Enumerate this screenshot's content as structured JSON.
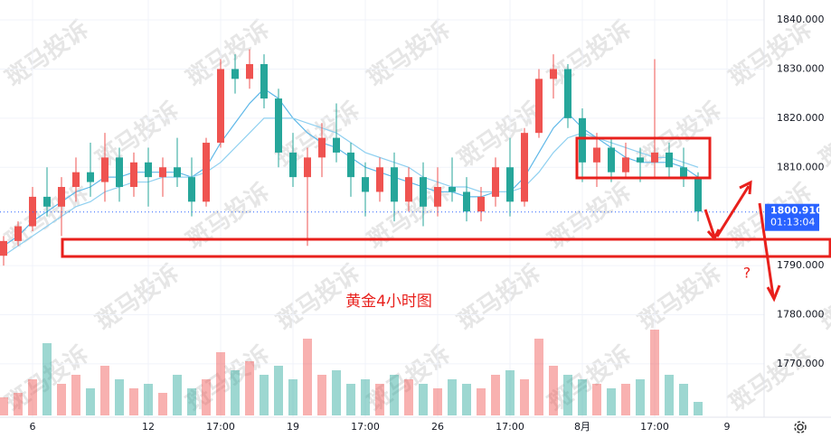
{
  "chart_data": {
    "type": "candlestick",
    "annotation": "黄金4小时图",
    "question_mark": "?",
    "watermark": "斑马投诉",
    "categories": [
      null,
      null,
      "6",
      null,
      null,
      null,
      null,
      null,
      null,
      null,
      "12",
      null,
      null,
      null,
      null,
      "17:00",
      null,
      null,
      null,
      null,
      "19",
      null,
      null,
      null,
      null,
      "17:00",
      null,
      null,
      null,
      null,
      "26",
      null,
      null,
      null,
      null,
      "17:00",
      null,
      null,
      null,
      null,
      "8月",
      null,
      null,
      null,
      null,
      "17:00",
      null,
      null,
      null,
      null,
      "9"
    ],
    "ohlc": [
      [
        1792,
        1796,
        1790,
        1795
      ],
      [
        1795,
        1799,
        1794,
        1798
      ],
      [
        1798,
        1806,
        1797,
        1804
      ],
      [
        1804,
        1810,
        1800,
        1802
      ],
      [
        1802,
        1808,
        1796,
        1806
      ],
      [
        1806,
        1812,
        1803,
        1809
      ],
      [
        1809,
        1815,
        1804,
        1807
      ],
      [
        1807,
        1817,
        1803,
        1812
      ],
      [
        1812,
        1814,
        1803,
        1806
      ],
      [
        1806,
        1813,
        1804,
        1811
      ],
      [
        1811,
        1814,
        1802,
        1808
      ],
      [
        1808,
        1812,
        1804,
        1810
      ],
      [
        1810,
        1816,
        1806,
        1808
      ],
      [
        1808,
        1812,
        1800,
        1803
      ],
      [
        1803,
        1816,
        1802,
        1815
      ],
      [
        1815,
        1832,
        1814,
        1830
      ],
      [
        1830,
        1833,
        1825,
        1828
      ],
      [
        1828,
        1834,
        1826,
        1831
      ],
      [
        1831,
        1833,
        1822,
        1824
      ],
      [
        1824,
        1826,
        1810,
        1813
      ],
      [
        1813,
        1817,
        1806,
        1808
      ],
      [
        1808,
        1814,
        1794,
        1812
      ],
      [
        1812,
        1819,
        1808,
        1816
      ],
      [
        1816,
        1823,
        1811,
        1813
      ],
      [
        1813,
        1815,
        1804,
        1808
      ],
      [
        1808,
        1811,
        1800,
        1805
      ],
      [
        1805,
        1812,
        1803,
        1810
      ],
      [
        1810,
        1813,
        1799,
        1803
      ],
      [
        1803,
        1810,
        1801,
        1808
      ],
      [
        1808,
        1811,
        1798,
        1802
      ],
      [
        1802,
        1810,
        1800,
        1806
      ],
      [
        1806,
        1812,
        1803,
        1805
      ],
      [
        1805,
        1808,
        1799,
        1801
      ],
      [
        1801,
        1806,
        1799,
        1804
      ],
      [
        1804,
        1812,
        1802,
        1810
      ],
      [
        1810,
        1816,
        1800,
        1803
      ],
      [
        1803,
        1818,
        1802,
        1817
      ],
      [
        1817,
        1830,
        1816,
        1828
      ],
      [
        1828,
        1833,
        1824,
        1830
      ],
      [
        1830,
        1831,
        1818,
        1820
      ],
      [
        1820,
        1822,
        1807,
        1811
      ],
      [
        1811,
        1817,
        1806,
        1814
      ],
      [
        1814,
        1816,
        1807,
        1809
      ],
      [
        1809,
        1815,
        1808,
        1812
      ],
      [
        1812,
        1814,
        1807,
        1811
      ],
      [
        1811,
        1832,
        1808,
        1813
      ],
      [
        1813,
        1815,
        1808,
        1810
      ],
      [
        1810,
        1814,
        1806,
        1808
      ],
      [
        1808,
        1809,
        1799,
        1801
      ],
      null,
      null
    ],
    "volume": [
      20,
      25,
      40,
      80,
      35,
      45,
      30,
      55,
      40,
      30,
      35,
      25,
      45,
      30,
      40,
      70,
      50,
      60,
      45,
      55,
      40,
      85,
      45,
      50,
      35,
      40,
      35,
      45,
      40,
      35,
      30,
      40,
      35,
      30,
      45,
      50,
      40,
      85,
      55,
      45,
      40,
      35,
      30,
      35,
      40,
      95,
      45,
      35,
      15,
      null,
      null
    ],
    "series": [
      {
        "color": "#5fb8e8",
        "values": [
          1794,
          1796,
          1799,
          1801,
          1803,
          1805,
          1806,
          1808,
          1808,
          1809,
          1809,
          1809,
          1809,
          1808,
          1810,
          1815,
          1819,
          1823,
          1826,
          1824,
          1820,
          1817,
          1815,
          1814,
          1812,
          1810,
          1809,
          1808,
          1807,
          1806,
          1805,
          1805,
          1804,
          1804,
          1805,
          1805,
          1808,
          1813,
          1818,
          1821,
          1818,
          1816,
          1814,
          1812,
          1811,
          1811,
          1811,
          1810,
          1808,
          null,
          null
        ]
      },
      {
        "color": "#8fd0f0",
        "values": [
          1792,
          1794,
          1796,
          1798,
          1800,
          1802,
          1803,
          1805,
          1806,
          1807,
          1807,
          1808,
          1808,
          1808,
          1809,
          1811,
          1814,
          1817,
          1820,
          1820,
          1820,
          1819,
          1818,
          1817,
          1815,
          1813,
          1812,
          1811,
          1810,
          1808,
          1807,
          1806,
          1806,
          1805,
          1805,
          1805,
          1806,
          1809,
          1813,
          1816,
          1817,
          1816,
          1815,
          1814,
          1813,
          1812,
          1812,
          1811,
          1810,
          null,
          null
        ]
      }
    ],
    "up_color": "#ef5350",
    "down_color": "#26a69a",
    "ylim": [
      1759.5,
      1844.05
    ],
    "yticks": [
      {
        "value": 1840,
        "label": "1840.000"
      },
      {
        "value": 1830,
        "label": "1830.000"
      },
      {
        "value": 1820,
        "label": "1820.000"
      },
      {
        "value": 1810,
        "label": "1810.000"
      },
      {
        "value": 1790,
        "label": "1790.000"
      },
      {
        "value": 1780,
        "label": "1780.000"
      },
      {
        "value": 1770,
        "label": "1770.000"
      }
    ],
    "last_price": {
      "value": 1800.91,
      "label": "1800.910"
    },
    "countdown": "01:13:04",
    "grid": true
  }
}
